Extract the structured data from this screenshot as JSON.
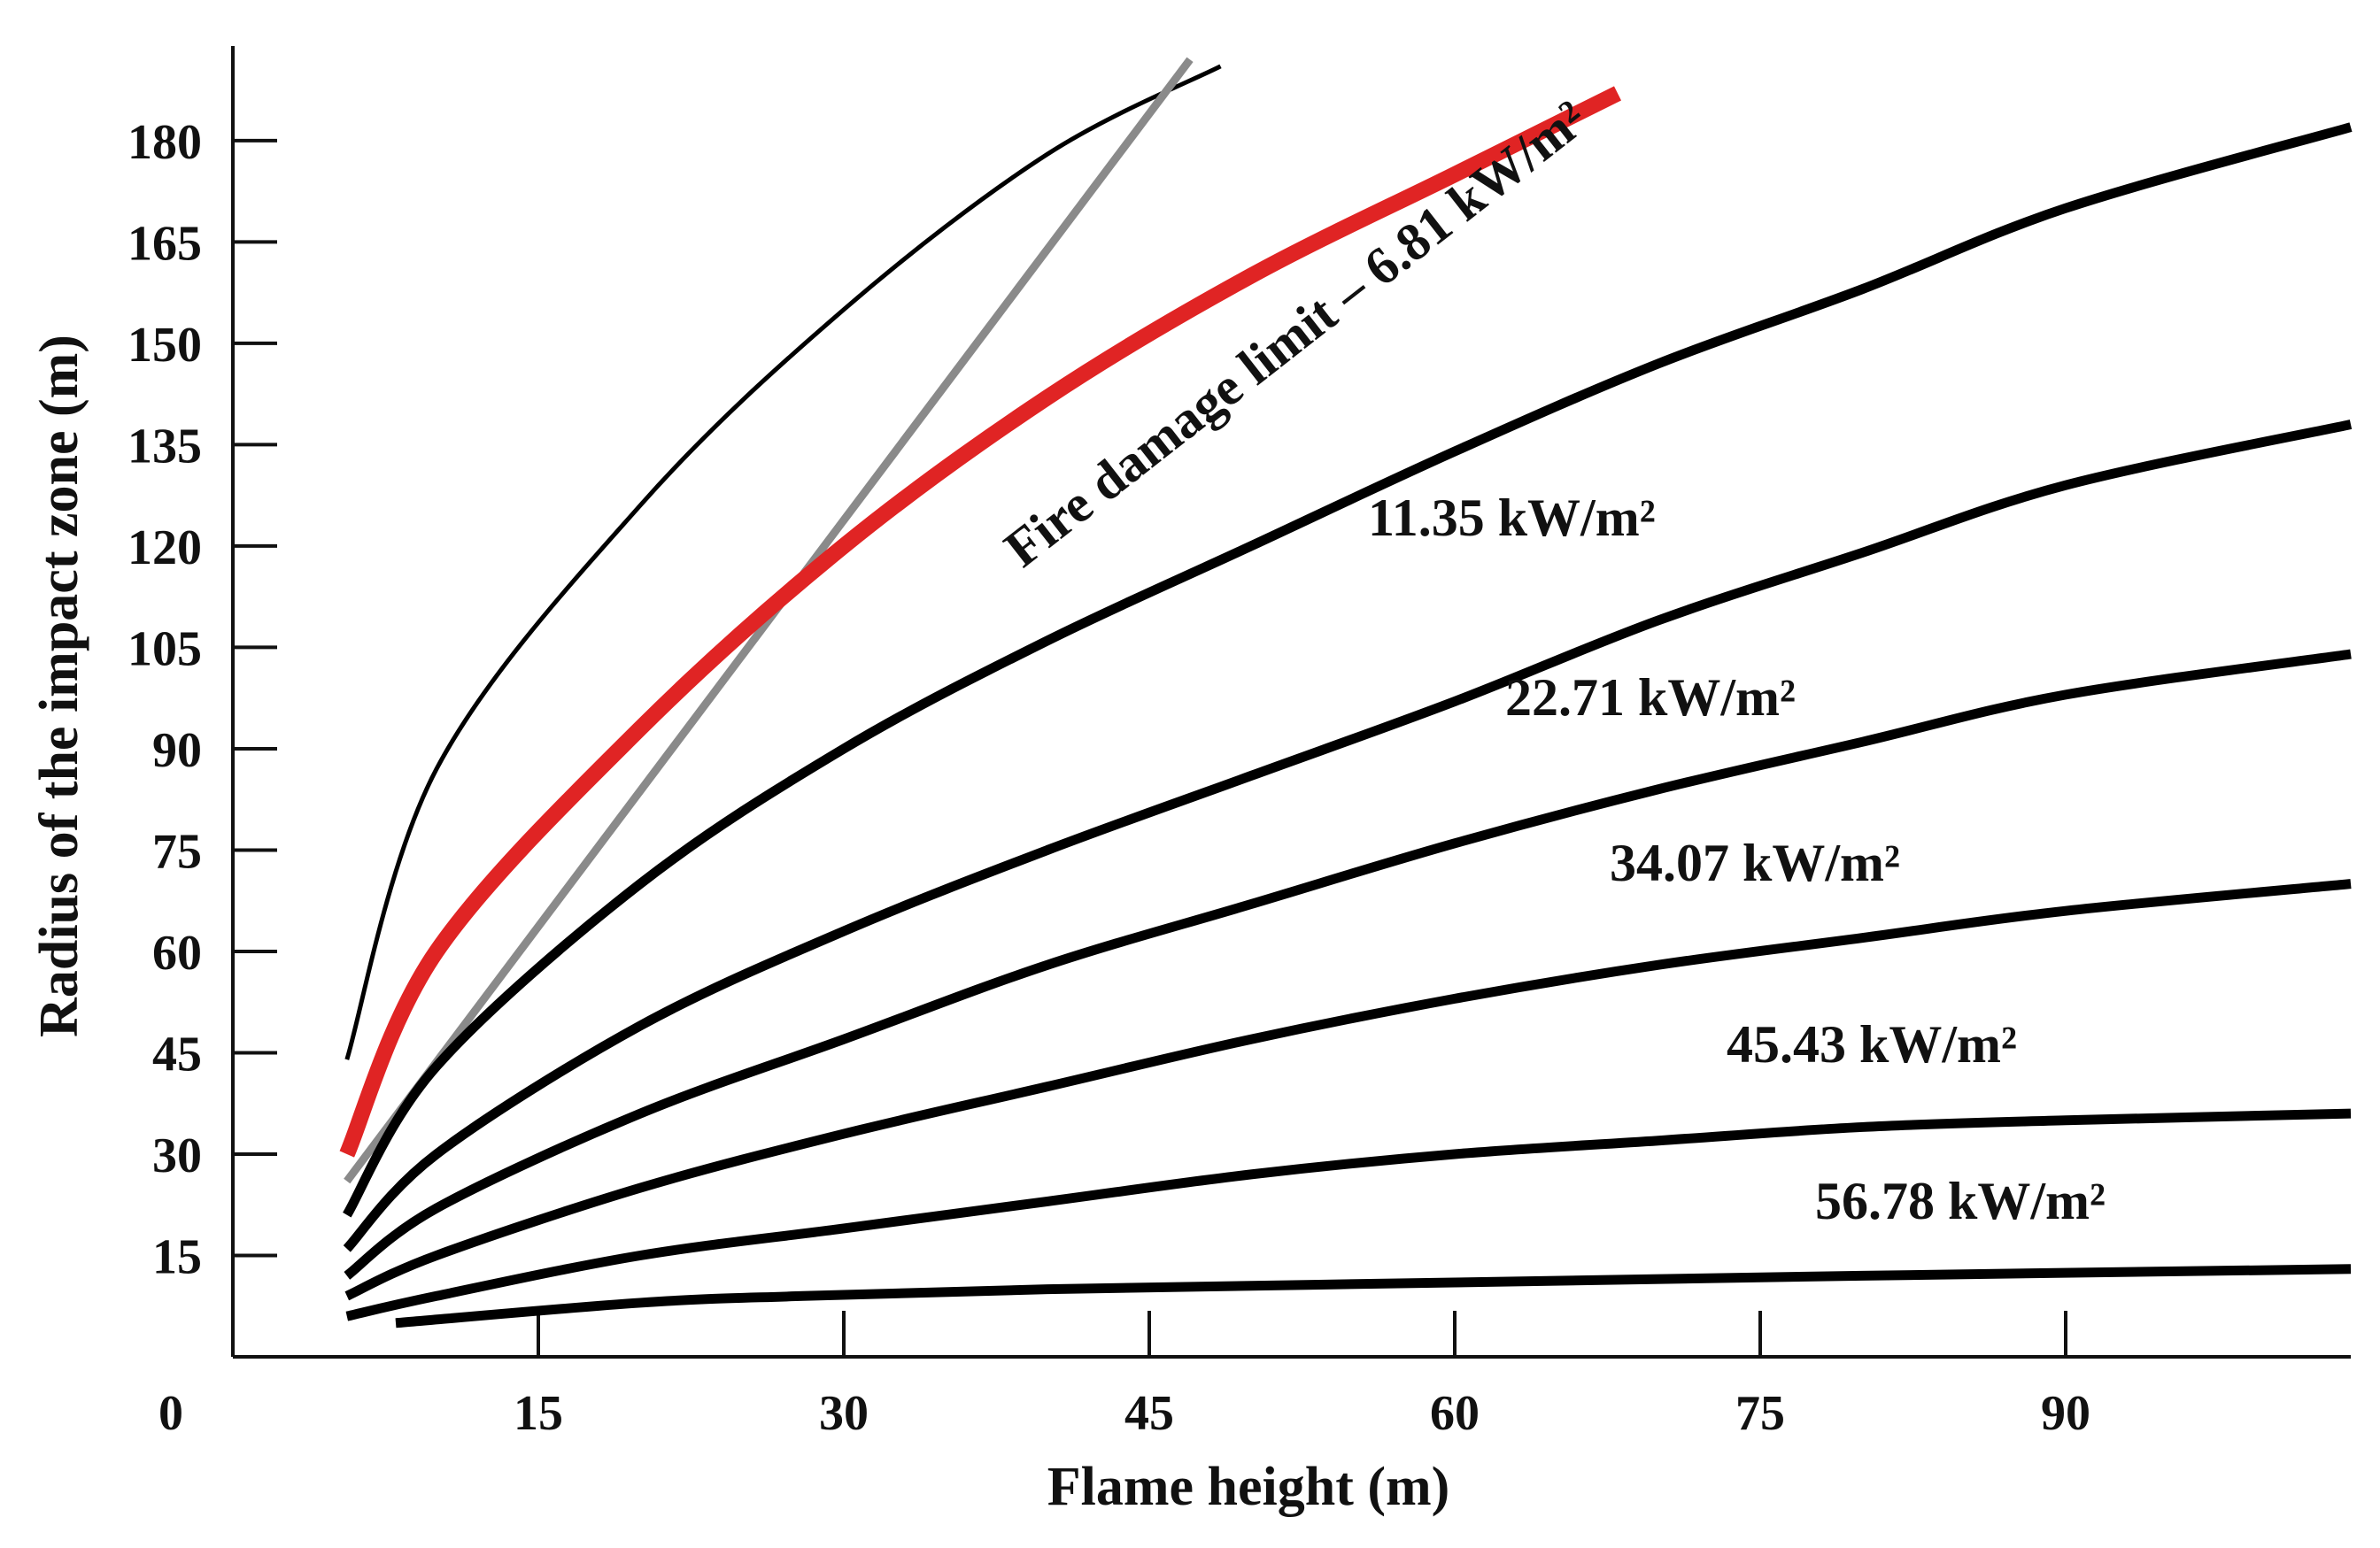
{
  "chart_data": {
    "type": "line",
    "title": "",
    "xlabel": "Flame height (m)",
    "ylabel": "Radius of the impact zone (m)",
    "origin_label": "0",
    "xlim": [
      0,
      104
    ],
    "ylim": [
      0,
      194
    ],
    "x_ticks": [
      15,
      30,
      45,
      60,
      75,
      90
    ],
    "x_tick_labels": [
      "15",
      "30",
      "45",
      "60",
      "75",
      "90"
    ],
    "y_ticks": [
      15,
      30,
      45,
      60,
      75,
      90,
      105,
      120,
      135,
      150,
      165,
      180
    ],
    "y_tick_labels": [
      "15",
      "30",
      "45",
      "60",
      "75",
      "90",
      "105",
      "120",
      "135",
      "150",
      "165",
      "180"
    ],
    "grid": false,
    "series": [
      {
        "name": "upper-thin",
        "label": "",
        "color": "#000000",
        "weight": "thin",
        "x": [
          5.6,
          10,
          20,
          30,
          40,
          48.5
        ],
        "y": [
          44,
          87,
          126,
          155,
          178,
          191
        ]
      },
      {
        "name": "gray-line",
        "label": "",
        "color": "#8a8a8a",
        "weight": "medium",
        "x": [
          5.6,
          47
        ],
        "y": [
          26,
          192
        ]
      },
      {
        "name": "fire-damage-limit",
        "label": "Fire damage limit – 6.81 kW/m²",
        "color": "#e02424",
        "weight": "bold",
        "x": [
          5.6,
          10,
          20,
          30,
          40,
          50,
          60,
          68
        ],
        "y": [
          30,
          60,
          93,
          120,
          142,
          160,
          175,
          187
        ]
      },
      {
        "name": "11.35",
        "label": "11.35 kW/m²",
        "color": "#000000",
        "weight": "bold",
        "x": [
          5.6,
          10,
          20,
          30,
          40,
          50,
          60,
          70,
          80,
          90,
          104
        ],
        "y": [
          21,
          43,
          70,
          90,
          106,
          120,
          134,
          147,
          158,
          170,
          182
        ]
      },
      {
        "name": "22.71",
        "label": "22.71 kW/m²",
        "color": "#000000",
        "weight": "bold",
        "x": [
          5.6,
          10,
          20,
          30,
          40,
          50,
          60,
          70,
          80,
          90,
          104
        ],
        "y": [
          16,
          30,
          49,
          63,
          75,
          86,
          97,
          109,
          119,
          129,
          138
        ]
      },
      {
        "name": "34.07",
        "label": "34.07 kW/m²",
        "color": "#000000",
        "weight": "bold",
        "x": [
          5.6,
          10,
          20,
          30,
          40,
          50,
          60,
          70,
          80,
          90,
          104
        ],
        "y": [
          12,
          22,
          36,
          47,
          58,
          67,
          76,
          84,
          91,
          98,
          104
        ]
      },
      {
        "name": "45.43",
        "label": "45.43 kW/m²",
        "color": "#000000",
        "weight": "bold",
        "x": [
          5.6,
          10,
          20,
          30,
          40,
          50,
          60,
          70,
          80,
          90,
          104
        ],
        "y": [
          9,
          15,
          25,
          33,
          40,
          47,
          53,
          58,
          62,
          66,
          70
        ]
      },
      {
        "name": "56.78",
        "label": "56.78 kW/m²",
        "color": "#000000",
        "weight": "bold",
        "x": [
          5.6,
          10,
          20,
          30,
          40,
          50,
          60,
          70,
          80,
          90,
          104
        ],
        "y": [
          6,
          9,
          15,
          19,
          23,
          27,
          30,
          32,
          34,
          35,
          36
        ]
      },
      {
        "name": "lowest",
        "label": "",
        "color": "#000000",
        "weight": "bold",
        "x": [
          8,
          20,
          28,
          40,
          60,
          80,
          104
        ],
        "y": [
          5,
          8,
          9,
          10,
          11,
          12,
          13
        ]
      }
    ]
  }
}
